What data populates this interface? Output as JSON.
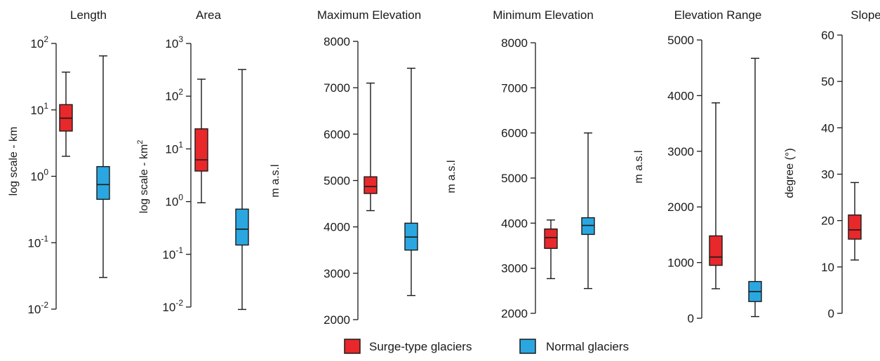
{
  "legend": {
    "surge_label": "Surge-type glaciers",
    "normal_label": "Normal glaciers",
    "surge_color": "#e8282b",
    "normal_color": "#2aa7e0"
  },
  "chart_data": [
    {
      "type": "box",
      "title": "Length",
      "ylabel": "log scale - km",
      "yscale": "log",
      "ylim": [
        0.01,
        100
      ],
      "ticks": [
        {
          "value": 100,
          "base": "10",
          "exp": "2"
        },
        {
          "value": 10,
          "base": "10",
          "exp": "1"
        },
        {
          "value": 1,
          "base": "10",
          "exp": "0"
        },
        {
          "value": 0.1,
          "base": "10",
          "exp": "-1"
        },
        {
          "value": 0.01,
          "base": "10",
          "exp": "-2"
        }
      ],
      "series": [
        {
          "name": "Surge-type glaciers",
          "whisker_low": 2.0,
          "q1": 4.8,
          "median": 7.5,
          "q3": 12.0,
          "whisker_high": 37
        },
        {
          "name": "Normal glaciers",
          "whisker_low": 0.03,
          "q1": 0.45,
          "median": 0.75,
          "q3": 1.4,
          "whisker_high": 65
        }
      ]
    },
    {
      "type": "box",
      "title": "Area",
      "ylabel": "log scale - km",
      "ylabel_sup": "2",
      "yscale": "log",
      "ylim": [
        0.01,
        1000
      ],
      "ticks": [
        {
          "value": 1000,
          "base": "10",
          "exp": "3"
        },
        {
          "value": 100,
          "base": "10",
          "exp": "2"
        },
        {
          "value": 10,
          "base": "10",
          "exp": "1"
        },
        {
          "value": 1,
          "base": "10",
          "exp": "0"
        },
        {
          "value": 0.1,
          "base": "10",
          "exp": "-1"
        },
        {
          "value": 0.01,
          "base": "10",
          "exp": "-2"
        }
      ],
      "series": [
        {
          "name": "Surge-type glaciers",
          "whisker_low": 0.95,
          "q1": 3.8,
          "median": 6.2,
          "q3": 24,
          "whisker_high": 210
        },
        {
          "name": "Normal glaciers",
          "whisker_low": 0.009,
          "q1": 0.15,
          "median": 0.3,
          "q3": 0.72,
          "whisker_high": 320
        }
      ]
    },
    {
      "type": "box",
      "title": "Maximum  Elevation",
      "ylabel": "m a.s.l",
      "yscale": "linear",
      "ylim": [
        2000,
        8000
      ],
      "ticks": [
        {
          "value": 8000,
          "label": "8000"
        },
        {
          "value": 7000,
          "label": "7000"
        },
        {
          "value": 6000,
          "label": "6000"
        },
        {
          "value": 5000,
          "label": "5000"
        },
        {
          "value": 4000,
          "label": "4000"
        },
        {
          "value": 3000,
          "label": "3000"
        },
        {
          "value": 2000,
          "label": "2000"
        }
      ],
      "series": [
        {
          "name": "Surge-type glaciers",
          "whisker_low": 4350,
          "q1": 4720,
          "median": 4870,
          "q3": 5080,
          "whisker_high": 7100
        },
        {
          "name": "Normal glaciers",
          "whisker_low": 2520,
          "q1": 3500,
          "median": 3780,
          "q3": 4080,
          "whisker_high": 7420
        }
      ]
    },
    {
      "type": "box",
      "title": "Minimum   Elevation",
      "ylabel": "m a.s.l",
      "yscale": "linear",
      "ylim": [
        2000,
        8000
      ],
      "ticks": [
        {
          "value": 8000,
          "label": "8000"
        },
        {
          "value": 7000,
          "label": "7000"
        },
        {
          "value": 6000,
          "label": "6000"
        },
        {
          "value": 5000,
          "label": "5000"
        },
        {
          "value": 4000,
          "label": "4000"
        },
        {
          "value": 3000,
          "label": "3000"
        },
        {
          "value": 2000,
          "label": "2000"
        }
      ],
      "series": [
        {
          "name": "Surge-type glaciers",
          "whisker_low": 2770,
          "q1": 3440,
          "median": 3680,
          "q3": 3870,
          "whisker_high": 4070
        },
        {
          "name": "Normal glaciers",
          "whisker_low": 2550,
          "q1": 3750,
          "median": 3950,
          "q3": 4120,
          "whisker_high": 6000
        }
      ]
    },
    {
      "type": "box",
      "title": "Elevation Range",
      "ylabel": "m a.s.l",
      "yscale": "linear",
      "ylim": [
        0,
        5000
      ],
      "ticks": [
        {
          "value": 5000,
          "label": "5000"
        },
        {
          "value": 4000,
          "label": "4000"
        },
        {
          "value": 3000,
          "label": "3000"
        },
        {
          "value": 2000,
          "label": "2000"
        },
        {
          "value": 1000,
          "label": "1000"
        },
        {
          "value": 0,
          "label": "0"
        }
      ],
      "series": [
        {
          "name": "Surge-type glaciers",
          "whisker_low": 530,
          "q1": 950,
          "median": 1100,
          "q3": 1480,
          "whisker_high": 3870
        },
        {
          "name": "Normal glaciers",
          "whisker_low": 30,
          "q1": 300,
          "median": 480,
          "q3": 660,
          "whisker_high": 4670
        }
      ]
    },
    {
      "type": "box",
      "title": "Slope",
      "ylabel": "degree (°)",
      "yscale": "linear",
      "ylim": [
        0,
        60
      ],
      "ticks": [
        {
          "value": 60,
          "label": "60"
        },
        {
          "value": 50,
          "label": "50"
        },
        {
          "value": 40,
          "label": "40"
        },
        {
          "value": 30,
          "label": "30"
        },
        {
          "value": 20,
          "label": "20"
        },
        {
          "value": 10,
          "label": "10"
        },
        {
          "value": 0,
          "label": "0"
        }
      ],
      "series": [
        {
          "name": "Surge-type glaciers",
          "whisker_low": 11.5,
          "q1": 16,
          "median": 18,
          "q3": 21.2,
          "whisker_high": 28.2
        }
      ]
    }
  ]
}
